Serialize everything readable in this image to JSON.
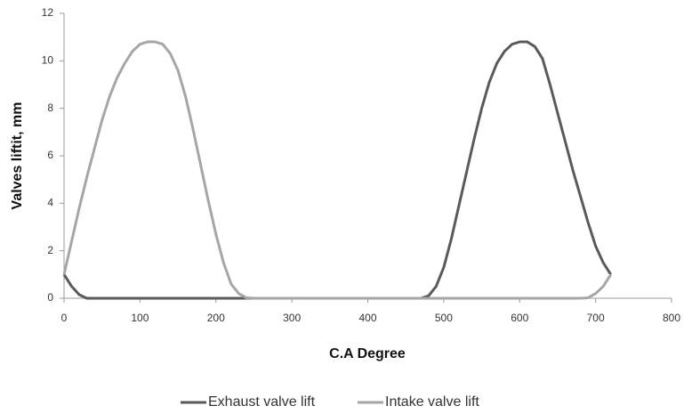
{
  "chart_data": {
    "type": "line",
    "x_label": "C.A  Degree",
    "y_label": "Valves liftit, mm",
    "xlim": [
      0,
      800
    ],
    "xticks": [
      0,
      100,
      200,
      300,
      400,
      500,
      600,
      700,
      800
    ],
    "ylim": [
      0,
      12
    ],
    "yticks": [
      0,
      2,
      4,
      6,
      8,
      10,
      12
    ],
    "grid": false,
    "legend": "bottom",
    "series": [
      {
        "name": "Exhaust valve lift",
        "color": "#5a5a5a",
        "x": [
          0,
          10,
          20,
          30,
          470,
          480,
          490,
          500,
          510,
          520,
          530,
          540,
          550,
          560,
          570,
          580,
          590,
          600,
          610,
          620,
          630,
          640,
          650,
          660,
          670,
          680,
          690,
          700,
          710,
          720
        ],
        "values": [
          1,
          0.5,
          0.15,
          0,
          0,
          0.1,
          0.5,
          1.3,
          2.5,
          3.9,
          5.3,
          6.7,
          8.0,
          9.1,
          9.9,
          10.4,
          10.7,
          10.8,
          10.8,
          10.6,
          10.1,
          9.0,
          7.8,
          6.6,
          5.4,
          4.3,
          3.2,
          2.2,
          1.5,
          1.0
        ]
      },
      {
        "name": "Intake valve lift",
        "color": "#a6a6a6",
        "x": [
          0,
          10,
          20,
          30,
          40,
          50,
          60,
          70,
          80,
          90,
          100,
          110,
          120,
          130,
          140,
          150,
          160,
          170,
          180,
          190,
          200,
          210,
          220,
          230,
          240,
          250,
          680,
          690,
          700,
          710,
          720
        ],
        "values": [
          1,
          2.4,
          3.8,
          5.1,
          6.3,
          7.5,
          8.5,
          9.3,
          9.9,
          10.4,
          10.7,
          10.8,
          10.8,
          10.7,
          10.3,
          9.6,
          8.5,
          7.1,
          5.6,
          4.1,
          2.7,
          1.5,
          0.6,
          0.2,
          0.02,
          0,
          0,
          0.02,
          0.2,
          0.5,
          1
        ]
      }
    ]
  }
}
